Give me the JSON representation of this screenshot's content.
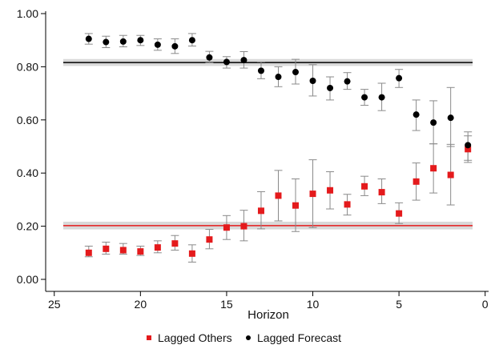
{
  "chart_data": {
    "type": "scatter",
    "title": "",
    "xlabel": "Horizon",
    "ylabel": "",
    "xlim": [
      25.5,
      -0.2
    ],
    "ylim": [
      0,
      1.0
    ],
    "x_ticks": [
      25,
      20,
      15,
      10,
      5,
      0
    ],
    "y_ticks": [
      0.0,
      0.2,
      0.4,
      0.6,
      0.8,
      1.0
    ],
    "x_tick_labels": [
      "25",
      "20",
      "15",
      "10",
      "5",
      "0"
    ],
    "y_tick_labels": [
      "0.00",
      "0.20",
      "0.40",
      "0.60",
      "0.80",
      "1.00"
    ],
    "grid": false,
    "legend_position": "bottom-center",
    "series": [
      {
        "name": "Lagged Others",
        "marker": "square",
        "color": "#e41a1c",
        "x": [
          23,
          22,
          21,
          20,
          19,
          18,
          17,
          16,
          15,
          14,
          13,
          12,
          11,
          10,
          9,
          8,
          7,
          6,
          5,
          4,
          3,
          2,
          1
        ],
        "y": [
          0.1,
          0.115,
          0.11,
          0.105,
          0.12,
          0.135,
          0.097,
          0.15,
          0.195,
          0.2,
          0.258,
          0.315,
          0.278,
          0.322,
          0.335,
          0.282,
          0.35,
          0.328,
          0.248,
          0.368,
          0.418,
          0.393,
          0.49
        ],
        "err_low": [
          0.085,
          0.095,
          0.095,
          0.09,
          0.1,
          0.11,
          0.065,
          0.115,
          0.15,
          0.145,
          0.19,
          0.22,
          0.18,
          0.195,
          0.265,
          0.242,
          0.315,
          0.285,
          0.21,
          0.298,
          0.325,
          0.28,
          0.44
        ],
        "err_high": [
          0.125,
          0.14,
          0.135,
          0.125,
          0.145,
          0.165,
          0.13,
          0.188,
          0.24,
          0.26,
          0.33,
          0.41,
          0.378,
          0.45,
          0.405,
          0.32,
          0.388,
          0.378,
          0.288,
          0.438,
          0.51,
          0.508,
          0.54
        ]
      },
      {
        "name": "Lagged Forecast",
        "marker": "circle",
        "color": "#000000",
        "x": [
          23,
          22,
          21,
          20,
          19,
          18,
          17,
          16,
          15,
          14,
          13,
          12,
          11,
          10,
          9,
          8,
          7,
          6,
          5,
          4,
          3,
          2,
          1
        ],
        "y": [
          0.905,
          0.893,
          0.895,
          0.9,
          0.883,
          0.877,
          0.9,
          0.835,
          0.818,
          0.825,
          0.785,
          0.762,
          0.78,
          0.747,
          0.72,
          0.745,
          0.685,
          0.685,
          0.757,
          0.62,
          0.59,
          0.608,
          0.505
        ],
        "err_low": [
          0.885,
          0.872,
          0.875,
          0.88,
          0.862,
          0.85,
          0.878,
          0.815,
          0.795,
          0.795,
          0.755,
          0.725,
          0.735,
          0.69,
          0.675,
          0.715,
          0.655,
          0.635,
          0.722,
          0.56,
          0.51,
          0.5,
          0.448
        ],
        "err_high": [
          0.925,
          0.915,
          0.918,
          0.918,
          0.905,
          0.905,
          0.925,
          0.858,
          0.838,
          0.857,
          0.818,
          0.8,
          0.828,
          0.808,
          0.762,
          0.778,
          0.715,
          0.738,
          0.79,
          0.675,
          0.672,
          0.722,
          0.555
        ]
      }
    ],
    "reference_lines": [
      {
        "y": 0.816,
        "band": [
          0.803,
          0.829
        ],
        "color": "#000000"
      },
      {
        "y": 0.202,
        "band": [
          0.188,
          0.217
        ],
        "color": "#e41a1c"
      }
    ]
  }
}
